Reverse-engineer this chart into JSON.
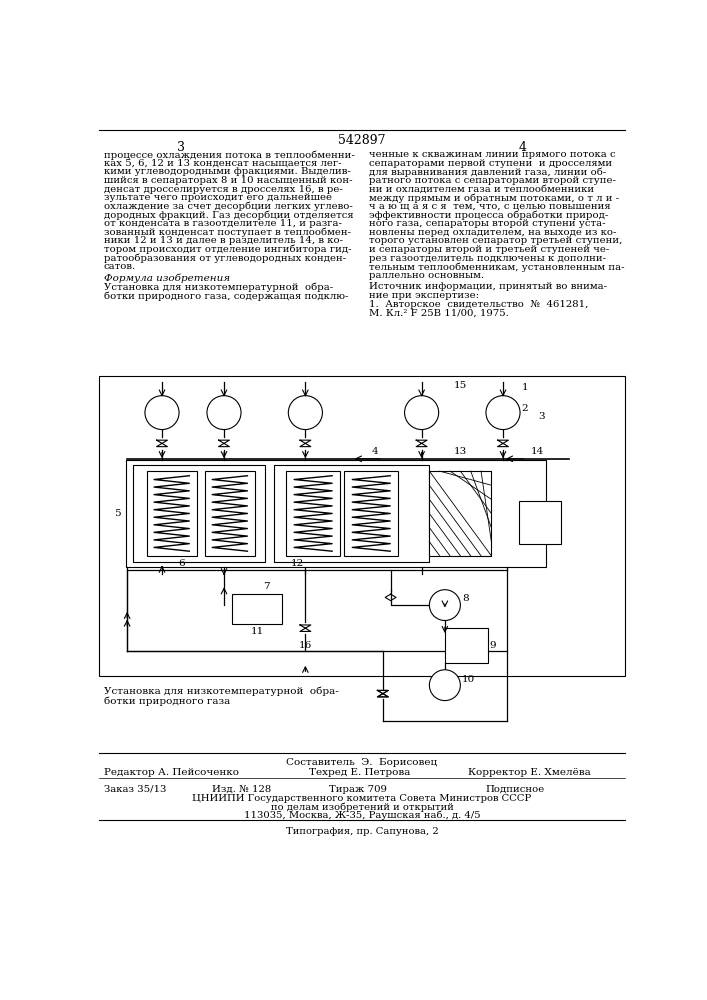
{
  "page_number_center": "542897",
  "page_col_left": "3",
  "page_col_right": "4",
  "left_lines": [
    "процессе охлаждения потока в теплообменни-",
    "ках 5, 6, 12 и 13 конденсат насыщается лег-",
    "кими углеводородными фракциями. Выделив-",
    "шийся в сепараторах 8 и 10 насыщенный кон-",
    "денсат дросселируется в дросселях 16, в ре-",
    "зультате чего происходит его дальнейшее",
    "охлаждение за счет десорбции легких углево-",
    "дородных фракций. Газ десорбции отделяется",
    "от конденсата в газоотделителе 11, и разга-",
    "зованный конденсат поступает в теплообмен-",
    "ники 12 и 13 и далее в разделитель 14, в ко-",
    "тором происходит отделение ингибитора гид-",
    "ратообразования от углеводородных конден-",
    "сатов."
  ],
  "right_lines": [
    "ченные к скважинам линии прямого потока с",
    "сепараторами первой ступени  и дросселями",
    "для выравнивания давлений газа, линии об-",
    "ратного потока с сепараторами второй ступе-",
    "ни и охладителем газа и теплообменники",
    "между прямым и обратным потоками, о т л и -",
    "ч а ю щ а я с я  тем, что, с целью повышения",
    "эффективности процесса обработки природ-",
    "ного газа, сепараторы второй ступени уста-",
    "новлены перед охладителем, на выходе из ко-",
    "торого установлен сепаратор третьей ступени,",
    "и сепараторы второй и третьей ступеней че-",
    "рез газоотделитель подключены к дополни-",
    "тельным теплообменникам, установленным па-",
    "раллельно основным."
  ],
  "formula_title": "Формула изобретения",
  "formula_lines": [
    "Установка для низкотемпературной  обра-",
    "ботки природного газа, содержащая подклю-"
  ],
  "source_lines": [
    "Источник информации, принятый во внима-",
    "ние при экспертизе:",
    "1.  Авторское  свидетельство  №  461281,",
    "М. Кл.² F 25B 11/00, 1975."
  ],
  "composer_line": "Составитель  Э.  Борисовец",
  "editor_line": "Редактор А. Пейсоченко",
  "techred_line": "Техред Е. Петрова",
  "corrector_line": "Корректор Е. Хмелёва",
  "order_line": "Заказ 35/13",
  "izd_line": "Изд. № 128",
  "tirazh_line": "Тираж 709",
  "podpisnoe_line": "Подписное",
  "org_line1": "ЦНИИПИ Государственного комитета Совета Министров СССР",
  "org_line2": "по делам изобретений и открытий",
  "org_line3": "113035, Москва, Ж-35, Раушская наб., д. 4/5",
  "typography_line": "Типография, пр. Сапунова, 2"
}
